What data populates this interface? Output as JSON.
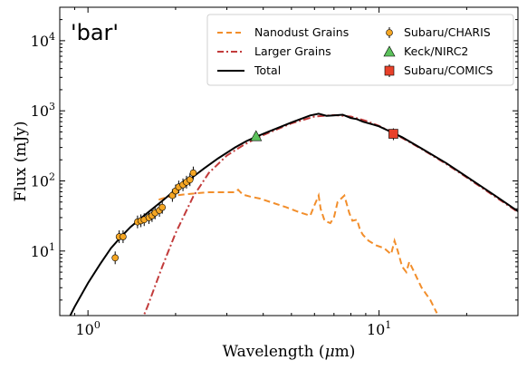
{
  "chart_data": {
    "type": "line",
    "title": "'bar'",
    "xlabel": "Wavelength (",
    "xlabel_unit": "μ",
    "xlabel_tail": "m)",
    "ylabel": "Flux (mJy)",
    "xscale": "log",
    "yscale": "log",
    "xlim": [
      0.8,
      30
    ],
    "ylim": [
      1.2,
      30000
    ],
    "x_ticks": [
      {
        "base": "10",
        "exp": "0",
        "value": 1
      },
      {
        "base": "10",
        "exp": "1",
        "value": 10
      }
    ],
    "y_ticks": [
      {
        "base": "10",
        "exp": "1",
        "value": 10
      },
      {
        "base": "10",
        "exp": "2",
        "value": 100
      },
      {
        "base": "10",
        "exp": "3",
        "value": 1000
      },
      {
        "base": "10",
        "exp": "4",
        "value": 10000
      }
    ],
    "grid": false,
    "legend": {
      "placement": "top-right",
      "column_1": [
        "Nanodust Grains",
        "Larger Grains",
        "Total"
      ],
      "column_2": [
        "Subaru/CHARIS",
        "Keck/NIRC2",
        "Subaru/COMICS"
      ]
    },
    "series": [
      {
        "name": "Nanodust Grains",
        "style": "dashed",
        "color": "#f28e2b",
        "x": [
          1.75,
          1.85,
          2.0,
          2.2,
          2.4,
          2.6,
          2.8,
          3.0,
          3.2,
          3.28,
          3.33,
          3.4,
          3.6,
          3.9,
          4.3,
          4.8,
          5.3,
          5.8,
          6.0,
          6.2,
          6.3,
          6.5,
          6.8,
          7.0,
          7.2,
          7.6,
          7.9,
          8.1,
          8.4,
          8.6,
          8.8,
          9.2,
          9.8,
          10.4,
          11.0,
          11.3,
          11.6,
          12.0,
          12.4,
          12.7,
          13.2,
          14.0,
          15.0,
          15.8
        ],
        "y": [
          54,
          58,
          62,
          65,
          67,
          69,
          69,
          69,
          69,
          75,
          70,
          64,
          60,
          56,
          49,
          42,
          36,
          32,
          45,
          62,
          40,
          27,
          25,
          30,
          50,
          62,
          35,
          27,
          28,
          20,
          17,
          14,
          12,
          11,
          9,
          14,
          10,
          6,
          5,
          7,
          5,
          3,
          2,
          1.3
        ]
      },
      {
        "name": "Larger Grains",
        "style": "dashdot",
        "color": "#c23b3b",
        "x": [
          1.45,
          1.6,
          1.8,
          2.0,
          2.3,
          2.6,
          3.0,
          3.4,
          3.8,
          4.2,
          5.0,
          6.0,
          7.0,
          8.0,
          9.0,
          10.0,
          11.0,
          12.0,
          14.0,
          17.0,
          20.0,
          25.0,
          30.0
        ],
        "y": [
          0.6,
          1.6,
          6,
          18,
          60,
          130,
          230,
          320,
          410,
          490,
          660,
          830,
          870,
          830,
          720,
          610,
          500,
          410,
          285,
          175,
          112,
          60,
          36
        ]
      },
      {
        "name": "Total",
        "style": "solid",
        "color": "#000000",
        "x": [
          0.8,
          0.85,
          0.9,
          1.0,
          1.1,
          1.2,
          1.3,
          1.4,
          1.5,
          1.6,
          1.8,
          2.0,
          2.2,
          2.5,
          2.8,
          3.2,
          3.5,
          3.8,
          4.2,
          5.0,
          5.8,
          6.2,
          6.6,
          7.0,
          7.5,
          8.0,
          8.4,
          8.8,
          9.5,
          10.0,
          11.0,
          12.0,
          14.0,
          17.0,
          20.0,
          25.0,
          30.0
        ],
        "y": [
          0.6,
          1.0,
          1.6,
          3.5,
          6.5,
          11,
          16,
          22,
          28,
          35,
          52,
          75,
          100,
          150,
          210,
          300,
          370,
          430,
          510,
          680,
          860,
          910,
          850,
          860,
          880,
          790,
          760,
          700,
          640,
          600,
          500,
          420,
          290,
          180,
          115,
          62,
          37
        ]
      },
      {
        "name": "Subaru/CHARIS",
        "style": "marker",
        "marker": "circle",
        "color": "#f5a623",
        "x": [
          1.24,
          1.28,
          1.32,
          1.48,
          1.52,
          1.56,
          1.62,
          1.66,
          1.7,
          1.76,
          1.8,
          1.95,
          2.0,
          2.05,
          2.12,
          2.18,
          2.24,
          2.3
        ],
        "y": [
          8,
          16,
          16,
          26,
          27,
          28,
          30,
          32,
          35,
          38,
          42,
          62,
          72,
          82,
          88,
          96,
          104,
          130
        ]
      },
      {
        "name": "Keck/NIRC2",
        "style": "marker",
        "marker": "triangle",
        "color": "#5cc15c",
        "x": [
          3.78
        ],
        "y": [
          435
        ]
      },
      {
        "name": "Subaru/COMICS",
        "style": "marker",
        "marker": "square",
        "color": "#e8412a",
        "x": [
          11.2
        ],
        "y": [
          470
        ]
      }
    ]
  }
}
